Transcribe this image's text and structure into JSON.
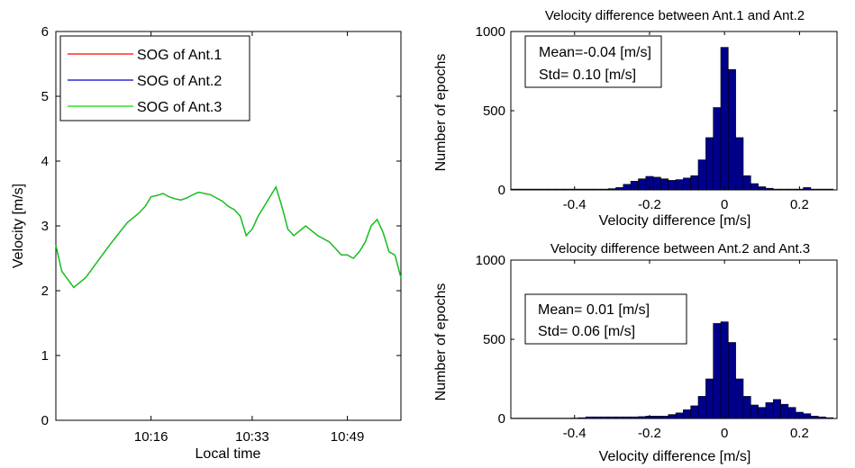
{
  "chart_data": [
    {
      "type": "line",
      "xlabel": "Local time",
      "ylabel": "Velocity [m/s]",
      "x_ticks": [
        "10:16",
        "10:33",
        "10:49"
      ],
      "x_tick_minutes": [
        16,
        33,
        49
      ],
      "xlim_minutes": [
        0,
        58
      ],
      "ylim": [
        0,
        6
      ],
      "y_ticks": [
        0,
        1,
        2,
        3,
        4,
        5,
        6
      ],
      "legend_position": "top-left",
      "series": [
        {
          "name": "SOG of Ant.1",
          "color": "#ff0000",
          "x": [
            0,
            1,
            3,
            5,
            9,
            12,
            14,
            15,
            16,
            17,
            18,
            19,
            20,
            21,
            22,
            23,
            24,
            26,
            28,
            29,
            30,
            31,
            32,
            33,
            34,
            35,
            36,
            37,
            38,
            39,
            40,
            42,
            44,
            46,
            48,
            49,
            50,
            51,
            52,
            53,
            54,
            55,
            56,
            57,
            58
          ],
          "y": [
            2.7,
            2.3,
            2.05,
            2.2,
            2.7,
            3.05,
            3.2,
            3.3,
            3.45,
            3.47,
            3.5,
            3.45,
            3.42,
            3.4,
            3.43,
            3.48,
            3.52,
            3.48,
            3.38,
            3.3,
            3.25,
            3.15,
            2.85,
            2.95,
            3.15,
            3.3,
            3.45,
            3.6,
            3.3,
            2.95,
            2.85,
            3.0,
            2.85,
            2.75,
            2.55,
            2.55,
            2.5,
            2.6,
            2.75,
            3.0,
            3.1,
            2.9,
            2.6,
            2.55,
            2.2
          ]
        },
        {
          "name": "SOG of Ant.2",
          "color": "#0000cc",
          "x": [
            0,
            1,
            3,
            5,
            9,
            12,
            14,
            15,
            16,
            17,
            18,
            19,
            20,
            21,
            22,
            23,
            24,
            26,
            28,
            29,
            30,
            31,
            32,
            33,
            34,
            35,
            36,
            37,
            38,
            39,
            40,
            42,
            44,
            46,
            48,
            49,
            50,
            51,
            52,
            53,
            54,
            55,
            56,
            57,
            58
          ],
          "y": [
            2.7,
            2.3,
            2.05,
            2.2,
            2.7,
            3.05,
            3.2,
            3.3,
            3.45,
            3.47,
            3.5,
            3.45,
            3.42,
            3.4,
            3.43,
            3.48,
            3.52,
            3.48,
            3.38,
            3.3,
            3.25,
            3.15,
            2.85,
            2.95,
            3.15,
            3.3,
            3.45,
            3.6,
            3.3,
            2.95,
            2.85,
            3.0,
            2.85,
            2.75,
            2.55,
            2.55,
            2.5,
            2.6,
            2.75,
            3.0,
            3.1,
            2.9,
            2.6,
            2.55,
            2.2
          ]
        },
        {
          "name": "SOG of Ant.3",
          "color": "#00dd00",
          "x": [
            0,
            1,
            3,
            5,
            9,
            12,
            14,
            15,
            16,
            17,
            18,
            19,
            20,
            21,
            22,
            23,
            24,
            26,
            28,
            29,
            30,
            31,
            32,
            33,
            34,
            35,
            36,
            37,
            38,
            39,
            40,
            42,
            44,
            46,
            48,
            49,
            50,
            51,
            52,
            53,
            54,
            55,
            56,
            57,
            58
          ],
          "y": [
            2.7,
            2.3,
            2.05,
            2.2,
            2.7,
            3.05,
            3.2,
            3.3,
            3.45,
            3.47,
            3.5,
            3.45,
            3.42,
            3.4,
            3.43,
            3.48,
            3.52,
            3.48,
            3.38,
            3.3,
            3.25,
            3.15,
            2.85,
            2.95,
            3.15,
            3.3,
            3.45,
            3.6,
            3.3,
            2.95,
            2.85,
            3.0,
            2.85,
            2.75,
            2.55,
            2.55,
            2.5,
            2.6,
            2.75,
            3.0,
            3.1,
            2.9,
            2.6,
            2.55,
            2.2
          ]
        }
      ]
    },
    {
      "type": "bar",
      "title": "Velocity difference between Ant.1 and Ant.2",
      "xlabel": "Velocity difference [m/s]",
      "ylabel": "Number of epochs",
      "xlim": [
        -0.57,
        0.3
      ],
      "ylim": [
        0,
        1000
      ],
      "x_ticks": [
        "-0.4",
        "-0.2",
        "0",
        "0.2"
      ],
      "x_tick_values": [
        -0.4,
        -0.2,
        0,
        0.2
      ],
      "y_ticks": [
        0,
        500,
        1000
      ],
      "bar_color": "#00008b",
      "bin_width": 0.02,
      "bin_centers": [
        -0.56,
        -0.54,
        -0.52,
        -0.5,
        -0.48,
        -0.46,
        -0.44,
        -0.42,
        -0.4,
        -0.38,
        -0.36,
        -0.34,
        -0.32,
        -0.3,
        -0.28,
        -0.26,
        -0.24,
        -0.22,
        -0.2,
        -0.18,
        -0.16,
        -0.14,
        -0.12,
        -0.1,
        -0.08,
        -0.06,
        -0.04,
        -0.02,
        0,
        0.02,
        0.04,
        0.06,
        0.08,
        0.1,
        0.12,
        0.14,
        0.16,
        0.18,
        0.2,
        0.22,
        0.24,
        0.26,
        0.28
      ],
      "values": [
        5,
        5,
        5,
        5,
        5,
        5,
        5,
        5,
        5,
        5,
        5,
        5,
        5,
        8,
        15,
        35,
        55,
        70,
        85,
        80,
        70,
        60,
        65,
        75,
        90,
        190,
        330,
        520,
        900,
        760,
        330,
        90,
        40,
        20,
        10,
        5,
        5,
        5,
        5,
        15,
        5,
        5,
        5
      ],
      "annotation": {
        "lines": [
          "Mean=-0.04  [m/s]",
          "Std= 0.10 [m/s]"
        ],
        "position": "top-left"
      }
    },
    {
      "type": "bar",
      "title": "Velocity difference between Ant.2 and Ant.3",
      "xlabel": "Velocity difference [m/s]",
      "ylabel": "Number of epochs",
      "xlim": [
        -0.57,
        0.3
      ],
      "ylim": [
        0,
        1000
      ],
      "x_ticks": [
        "-0.4",
        "-0.2",
        "0",
        "0.2"
      ],
      "x_tick_values": [
        -0.4,
        -0.2,
        0,
        0.2
      ],
      "y_ticks": [
        0,
        500,
        1000
      ],
      "bar_color": "#00008b",
      "bin_width": 0.02,
      "bin_centers": [
        -0.56,
        -0.54,
        -0.52,
        -0.5,
        -0.48,
        -0.46,
        -0.44,
        -0.42,
        -0.4,
        -0.38,
        -0.36,
        -0.34,
        -0.32,
        -0.3,
        -0.28,
        -0.26,
        -0.24,
        -0.22,
        -0.2,
        -0.18,
        -0.16,
        -0.14,
        -0.12,
        -0.1,
        -0.08,
        -0.06,
        -0.04,
        -0.02,
        0,
        0.02,
        0.04,
        0.06,
        0.08,
        0.1,
        0.12,
        0.14,
        0.16,
        0.18,
        0.2,
        0.22,
        0.24,
        0.26,
        0.28
      ],
      "values": [
        2,
        2,
        2,
        2,
        2,
        2,
        2,
        2,
        3,
        5,
        10,
        10,
        10,
        10,
        10,
        10,
        10,
        12,
        15,
        15,
        15,
        25,
        35,
        55,
        80,
        140,
        250,
        600,
        610,
        480,
        250,
        140,
        85,
        70,
        100,
        120,
        90,
        70,
        40,
        30,
        15,
        10,
        5
      ],
      "annotation": {
        "lines": [
          "Mean= 0.01  [m/s]",
          "Std= 0.06  [m/s]"
        ],
        "position": "top-left"
      }
    }
  ]
}
